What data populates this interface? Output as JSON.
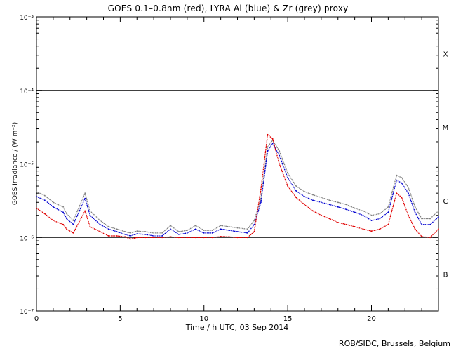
{
  "chart_data": {
    "type": "line",
    "title": "GOES 0.1–0.8nm (red), LYRA Al (blue) & Zr (grey) proxy",
    "xlabel": "Time / h UTC, 03 Sep 2014",
    "ylabel": "GOES Irradiance / (W m⁻²)",
    "xlim": [
      0,
      24
    ],
    "ylim": [
      1e-07,
      0.001
    ],
    "yscale": "log",
    "x_ticks": [
      "0",
      "5",
      "10",
      "15",
      "20"
    ],
    "y_ticks": [
      "10⁻³",
      "10⁻⁴",
      "10⁻⁵",
      "10⁻⁶",
      "10⁻⁷"
    ],
    "flare_classes": [
      "X",
      "M",
      "C",
      "B"
    ],
    "grid": "horizontal lines at 1e-4, 1e-5 and 1e-6",
    "x": [
      0,
      0.5,
      1.0,
      1.6,
      1.8,
      2.2,
      2.9,
      3.2,
      3.8,
      4.3,
      4.8,
      5.3,
      5.6,
      6.0,
      6.5,
      7.0,
      7.5,
      8.0,
      8.5,
      9.0,
      9.5,
      10.0,
      10.5,
      11.0,
      11.5,
      12.0,
      12.6,
      13.0,
      13.4,
      13.8,
      14.1,
      14.5,
      15.0,
      15.5,
      16.0,
      16.5,
      17.0,
      17.5,
      18.0,
      18.5,
      19.0,
      19.5,
      20.0,
      20.5,
      21.0,
      21.5,
      21.8,
      22.2,
      22.6,
      23.0,
      23.5,
      24.0
    ],
    "series": [
      {
        "name": "GOES 0.1–0.8nm",
        "color": "#e00000",
        "values": [
          2.5e-06,
          2.1e-06,
          1.7e-06,
          1.5e-06,
          1.3e-06,
          1.15e-06,
          2.3e-06,
          1.4e-06,
          1.2e-06,
          1.05e-06,
          1.05e-06,
          1.02e-06,
          9.5e-07,
          1e-06,
          1e-06,
          1e-06,
          1e-06,
          1.02e-06,
          1e-06,
          1e-06,
          1e-06,
          1e-06,
          1e-06,
          1.03e-06,
          1.02e-06,
          1e-06,
          1e-06,
          1.2e-06,
          4.5e-06,
          2.5e-05,
          2.2e-05,
          1e-05,
          5e-06,
          3.5e-06,
          2.8e-06,
          2.3e-06,
          2e-06,
          1.8e-06,
          1.6e-06,
          1.5e-06,
          1.4e-06,
          1.3e-06,
          1.22e-06,
          1.3e-06,
          1.5e-06,
          4e-06,
          3.5e-06,
          2e-06,
          1.3e-06,
          1.03e-06,
          1e-06,
          1.3e-06
        ]
      },
      {
        "name": "LYRA Al",
        "color": "#0000d0",
        "values": [
          3.6e-06,
          3.2e-06,
          2.6e-06,
          2.2e-06,
          1.8e-06,
          1.5e-06,
          3.4e-06,
          2e-06,
          1.5e-06,
          1.3e-06,
          1.2e-06,
          1.1e-06,
          1.05e-06,
          1.12e-06,
          1.1e-06,
          1.05e-06,
          1.05e-06,
          1.3e-06,
          1.1e-06,
          1.15e-06,
          1.3e-06,
          1.15e-06,
          1.15e-06,
          1.3e-06,
          1.25e-06,
          1.2e-06,
          1.15e-06,
          1.5e-06,
          3e-06,
          1.5e-05,
          1.9e-05,
          1.3e-05,
          6.5e-06,
          4.3e-06,
          3.6e-06,
          3.2e-06,
          3e-06,
          2.8e-06,
          2.6e-06,
          2.4e-06,
          2.2e-06,
          2e-06,
          1.7e-06,
          1.8e-06,
          2.2e-06,
          6e-06,
          5.5e-06,
          4e-06,
          2.2e-06,
          1.5e-06,
          1.5e-06,
          1.9e-06
        ]
      },
      {
        "name": "LYRA Zr",
        "color": "#808080",
        "values": [
          4.2e-06,
          3.7e-06,
          3e-06,
          2.6e-06,
          2.1e-06,
          1.7e-06,
          4e-06,
          2.3e-06,
          1.7e-06,
          1.4e-06,
          1.3e-06,
          1.2e-06,
          1.15e-06,
          1.22e-06,
          1.2e-06,
          1.15e-06,
          1.15e-06,
          1.45e-06,
          1.2e-06,
          1.25e-06,
          1.45e-06,
          1.25e-06,
          1.25e-06,
          1.45e-06,
          1.4e-06,
          1.35e-06,
          1.3e-06,
          1.7e-06,
          3.4e-06,
          1.7e-05,
          2.1e-05,
          1.5e-05,
          7.5e-06,
          5e-06,
          4.2e-06,
          3.8e-06,
          3.5e-06,
          3.2e-06,
          3e-06,
          2.8e-06,
          2.5e-06,
          2.3e-06,
          2e-06,
          2.1e-06,
          2.6e-06,
          7e-06,
          6.5e-06,
          4.8e-06,
          2.6e-06,
          1.8e-06,
          1.8e-06,
          2.3e-06
        ]
      }
    ]
  },
  "credit": "ROB/SIDC, Brussels, Belgium"
}
